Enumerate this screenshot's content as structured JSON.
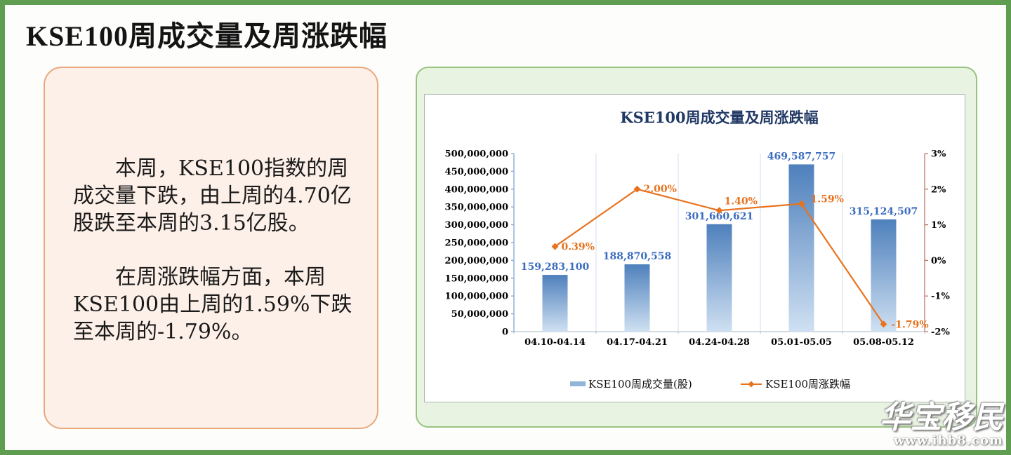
{
  "page": {
    "title": "KSE100周成交量及周涨跌幅",
    "watermark": {
      "brand": "华宝移民",
      "url": "www.ihb8.com"
    }
  },
  "summary_panel": {
    "paragraph1": "本周，KSE100指数的周成交量下跌，由上周的4.70亿股跌至本周的3.15亿股。",
    "paragraph2": "在周涨跌幅方面，本周KSE100由上周的1.59%下跌至本周的-1.79%。"
  },
  "chart_data": {
    "type": "bar",
    "combo": "bar+line",
    "title": "KSE100周成交量及周涨跌幅",
    "categories": [
      "04.10-04.14",
      "04.17-04.21",
      "04.24-04.28",
      "05.01-05.05",
      "05.08-05.12"
    ],
    "series": [
      {
        "name": "KSE100周成交量(股)",
        "type": "bar",
        "axis": "left",
        "values": [
          159283100,
          188870558,
          301660621,
          469587757,
          315124507
        ],
        "labels": [
          "159,283,100",
          "188,870,558",
          "301,660,621",
          "469,587,757",
          "315,124,507"
        ]
      },
      {
        "name": "KSE100周涨跌幅",
        "type": "line",
        "axis": "right",
        "values": [
          0.39,
          2.0,
          1.4,
          1.59,
          -1.79
        ],
        "labels": [
          "0.39%",
          "2.00%",
          "1.40%",
          "1.59%",
          "-1.79%"
        ]
      }
    ],
    "left_axis": {
      "min": 0,
      "max": 500000000,
      "step": 50000000,
      "tick_labels": [
        "0",
        "50,000,000",
        "100,000,000",
        "150,000,000",
        "200,000,000",
        "250,000,000",
        "300,000,000",
        "350,000,000",
        "400,000,000",
        "450,000,000",
        "500,000,000"
      ]
    },
    "right_axis": {
      "min": -2,
      "max": 3,
      "step": 1,
      "tick_labels": [
        "-2%",
        "-1%",
        "0%",
        "1%",
        "2%",
        "3%"
      ]
    },
    "legend_position": "bottom",
    "grid": "vertical-category-separators"
  },
  "colors": {
    "page_border": "#5f9e50",
    "left_panel_bg": "#fdf0e8",
    "left_panel_border": "#eaa87c",
    "right_panel_bg": "#e9f3e2",
    "right_panel_border": "#97c47f",
    "chart_title": "#203864",
    "bar_gradient_top": "#4e80bc",
    "bar_gradient_bottom": "#cfe0f2",
    "bar_label": "#3b6cc0",
    "line": "#e8731e",
    "left_axis_line": "#89aed6",
    "right_axis_line": "#bb6a5e",
    "bottom_axis_line": "#b9c4ce",
    "gridline": "#dce5f3",
    "legend_bar_swatch": "#92b4d9"
  }
}
